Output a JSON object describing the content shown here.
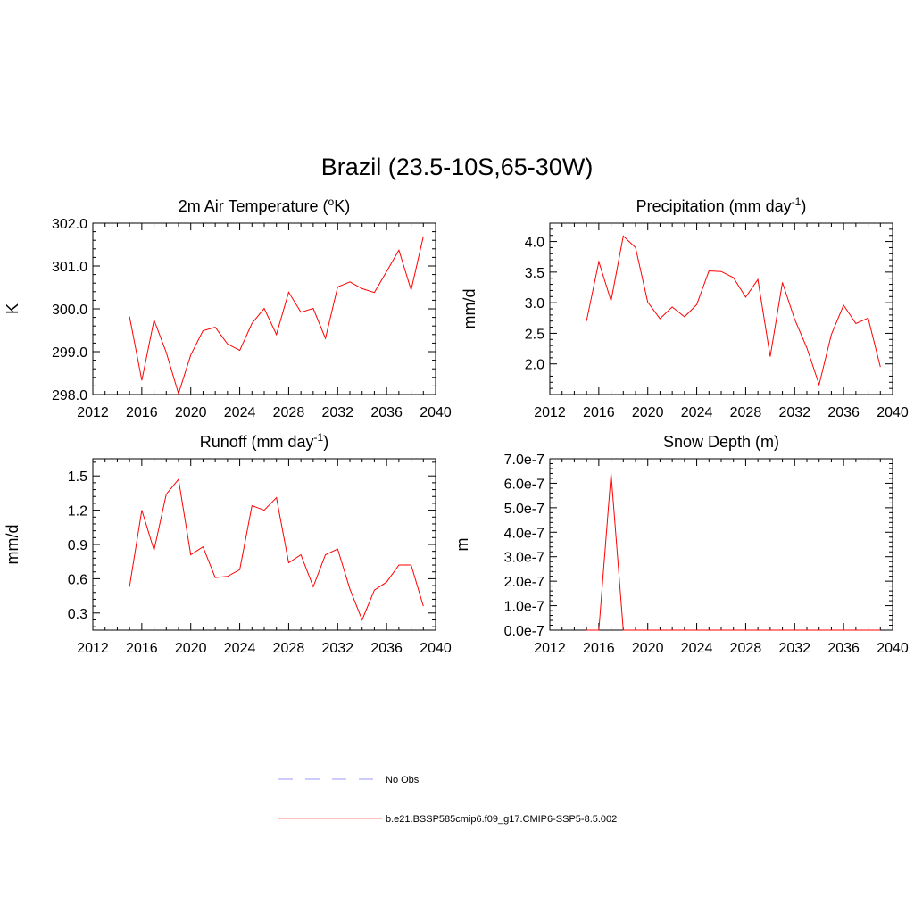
{
  "title": "Brazil (23.5-10S,65-30W)",
  "colors": {
    "series": "#ff0000",
    "obs": "#9999ff",
    "axis": "#000000"
  },
  "legend": {
    "items": [
      {
        "label": "No Obs",
        "style": "dashed",
        "color": "#9999ff"
      },
      {
        "label": "b.e21.BSSP585cmip6.f09_g17.CMIP6-SSP5-8.5.002",
        "style": "solid",
        "color": "#ff8080"
      }
    ]
  },
  "chart_data": [
    {
      "type": "line",
      "title": "2m Air Temperature (",
      "title_sup": "o",
      "title_after": "K)",
      "ylabel": "K",
      "xlim": [
        2012,
        2040
      ],
      "xticks": [
        "2012",
        "2016",
        "2020",
        "2024",
        "2028",
        "2032",
        "2036",
        "2040"
      ],
      "ylim": [
        298.0,
        302.0
      ],
      "yticks": [
        "298.0",
        "299.0",
        "300.0",
        "301.0",
        "302.0"
      ],
      "x": [
        2015,
        2016,
        2017,
        2018,
        2019,
        2020,
        2021,
        2022,
        2023,
        2024,
        2025,
        2026,
        2027,
        2028,
        2029,
        2030,
        2031,
        2032,
        2033,
        2034,
        2035,
        2036,
        2037,
        2038,
        2039
      ],
      "values": [
        299.82,
        298.33,
        299.74,
        298.98,
        298.02,
        298.92,
        299.49,
        299.57,
        299.18,
        299.03,
        299.66,
        300.01,
        299.4,
        300.39,
        299.92,
        300.01,
        299.31,
        300.51,
        300.63,
        300.47,
        300.38,
        300.87,
        301.37,
        300.44,
        301.69
      ]
    },
    {
      "type": "line",
      "title": "Precipitation (mm day",
      "title_sup": "-1",
      "title_after": ")",
      "ylabel": "mm/d",
      "xlim": [
        2012,
        2040
      ],
      "xticks": [
        "2012",
        "2016",
        "2020",
        "2024",
        "2028",
        "2032",
        "2036",
        "2040"
      ],
      "ylim": [
        1.5,
        4.3
      ],
      "yticks": [
        "2.0",
        "2.5",
        "3.0",
        "3.5",
        "4.0"
      ],
      "x": [
        2015,
        2016,
        2017,
        2018,
        2019,
        2020,
        2021,
        2022,
        2023,
        2024,
        2025,
        2026,
        2027,
        2028,
        2029,
        2030,
        2031,
        2032,
        2033,
        2034,
        2035,
        2036,
        2037,
        2038,
        2039
      ],
      "values": [
        2.7,
        3.67,
        3.03,
        4.09,
        3.9,
        3.01,
        2.74,
        2.93,
        2.77,
        2.97,
        3.52,
        3.51,
        3.41,
        3.09,
        3.38,
        2.12,
        3.33,
        2.73,
        2.26,
        1.66,
        2.48,
        2.96,
        2.66,
        2.75,
        1.95
      ]
    },
    {
      "type": "line",
      "title": "Runoff (mm day",
      "title_sup": "-1",
      "title_after": ")",
      "ylabel": "mm/d",
      "xlim": [
        2012,
        2040
      ],
      "xticks": [
        "2012",
        "2016",
        "2020",
        "2024",
        "2028",
        "2032",
        "2036",
        "2040"
      ],
      "ylim": [
        0.15,
        1.65
      ],
      "yticks": [
        "0.3",
        "0.6",
        "0.9",
        "1.2",
        "1.5"
      ],
      "x": [
        2015,
        2016,
        2017,
        2018,
        2019,
        2020,
        2021,
        2022,
        2023,
        2024,
        2025,
        2026,
        2027,
        2028,
        2029,
        2030,
        2031,
        2032,
        2033,
        2034,
        2035,
        2036,
        2037,
        2038,
        2039
      ],
      "values": [
        0.53,
        1.2,
        0.85,
        1.34,
        1.47,
        0.81,
        0.88,
        0.61,
        0.62,
        0.68,
        1.24,
        1.2,
        1.31,
        0.74,
        0.81,
        0.53,
        0.81,
        0.86,
        0.51,
        0.24,
        0.5,
        0.57,
        0.72,
        0.72,
        0.36
      ]
    },
    {
      "type": "line",
      "title": "Snow Depth (m)",
      "title_sup": "",
      "title_after": "",
      "ylabel": "m",
      "xlim": [
        2012,
        2040
      ],
      "xticks": [
        "2012",
        "2016",
        "2020",
        "2024",
        "2028",
        "2032",
        "2036",
        "2040"
      ],
      "ylim": [
        0,
        7e-07
      ],
      "yticks": [
        "0.0e-7",
        "1.0e-7",
        "2.0e-7",
        "3.0e-7",
        "4.0e-7",
        "5.0e-7",
        "6.0e-7",
        "7.0e-7"
      ],
      "x": [
        2015,
        2016,
        2017,
        2018,
        2019,
        2020,
        2021,
        2022,
        2023,
        2024,
        2025,
        2026,
        2027,
        2028,
        2029,
        2030,
        2031,
        2032,
        2033,
        2034,
        2035,
        2036,
        2037,
        2038,
        2039
      ],
      "values": [
        0,
        0,
        6.4e-07,
        0,
        0,
        0,
        0,
        0,
        0,
        0,
        0,
        0,
        0,
        0,
        0,
        0,
        0,
        0,
        0,
        0,
        0,
        0,
        0,
        0,
        0
      ]
    }
  ]
}
